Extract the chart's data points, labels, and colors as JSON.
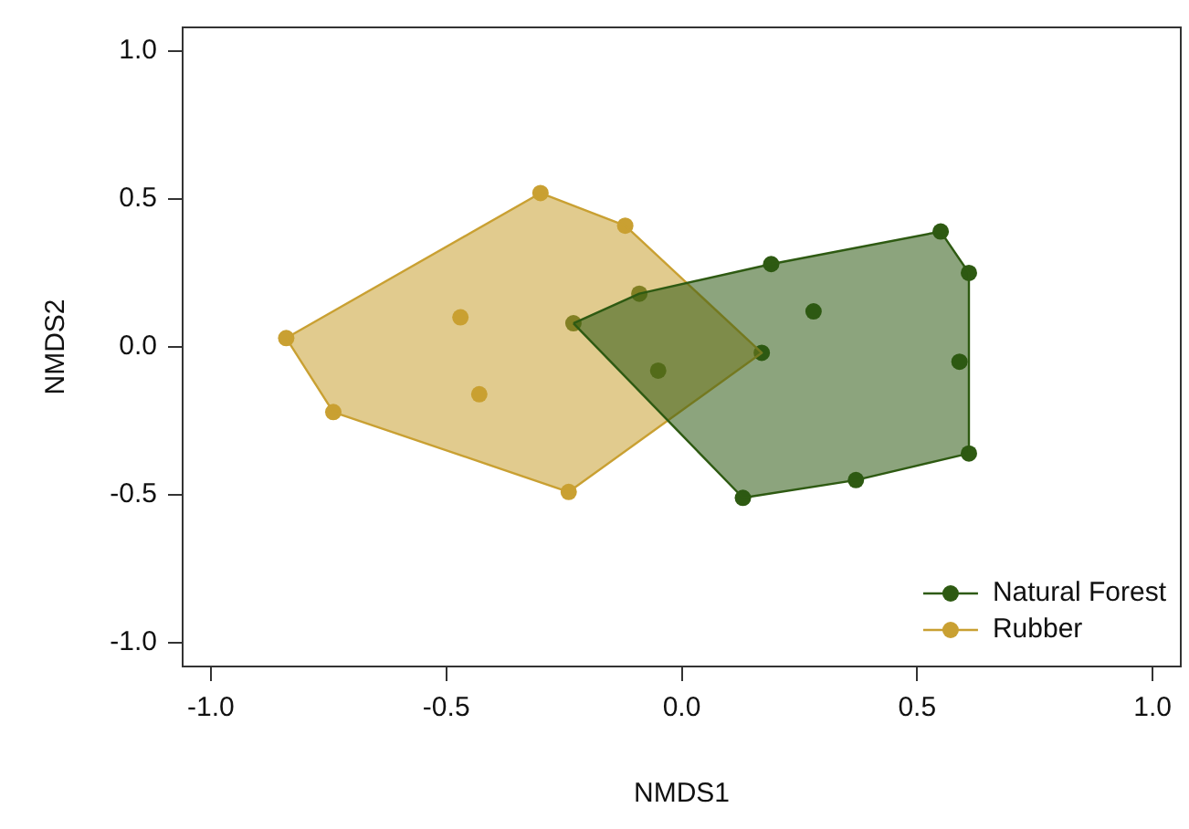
{
  "chart_data": {
    "type": "scatter",
    "xlabel": "NMDS1",
    "ylabel": "NMDS2",
    "xlim": [
      -1.06,
      1.06
    ],
    "ylim": [
      -1.08,
      1.08
    ],
    "xticks": [
      {
        "value": -1,
        "label": "-1.0"
      },
      {
        "value": -0.5,
        "label": "-0.5"
      },
      {
        "value": 0,
        "label": "0.0"
      },
      {
        "value": 0.5,
        "label": "0.5"
      },
      {
        "value": 1,
        "label": "1.0"
      }
    ],
    "yticks": [
      {
        "value": -1,
        "label": "-1.0"
      },
      {
        "value": -0.5,
        "label": "-0.5"
      },
      {
        "value": 0,
        "label": "0.0"
      },
      {
        "value": 0.5,
        "label": "0.5"
      },
      {
        "value": 1,
        "label": "1.0"
      }
    ],
    "grid": false,
    "legend": "bottom right",
    "series": [
      {
        "type": "area",
        "marker": "none",
        "color": "#2e5a12",
        "x": [
          -0.23,
          -0.09,
          0.19,
          0.55,
          0.61,
          0.61,
          0.37,
          0.13
        ],
        "values": [
          0.08,
          0.18,
          0.28,
          0.39,
          0.25,
          -0.36,
          -0.45,
          -0.51
        ]
      },
      {
        "type": "area",
        "marker": "none",
        "color": "#c9a032",
        "x": [
          -0.84,
          -0.3,
          -0.12,
          0.17,
          -0.24,
          -0.74
        ],
        "values": [
          0.03,
          0.52,
          0.41,
          -0.02,
          -0.49,
          -0.22
        ]
      },
      {
        "name": "Natural Forest",
        "marker": "circle",
        "color": "#2e5a12",
        "x": [
          -0.23,
          -0.09,
          -0.05,
          0.17,
          0.19,
          0.28,
          0.55,
          0.61,
          0.59,
          0.61,
          0.37,
          0.13
        ],
        "values": [
          0.08,
          0.18,
          -0.08,
          -0.02,
          0.28,
          0.12,
          0.39,
          0.25,
          -0.05,
          -0.36,
          -0.45,
          -0.51
        ]
      },
      {
        "name": "Rubber",
        "marker": "circle",
        "color": "#c9a032",
        "x": [
          -0.3,
          -0.12,
          -0.84,
          -0.47,
          -0.43,
          -0.74,
          -0.24
        ],
        "values": [
          0.52,
          0.41,
          0.03,
          0.1,
          -0.16,
          -0.22,
          -0.49
        ]
      }
    ]
  }
}
